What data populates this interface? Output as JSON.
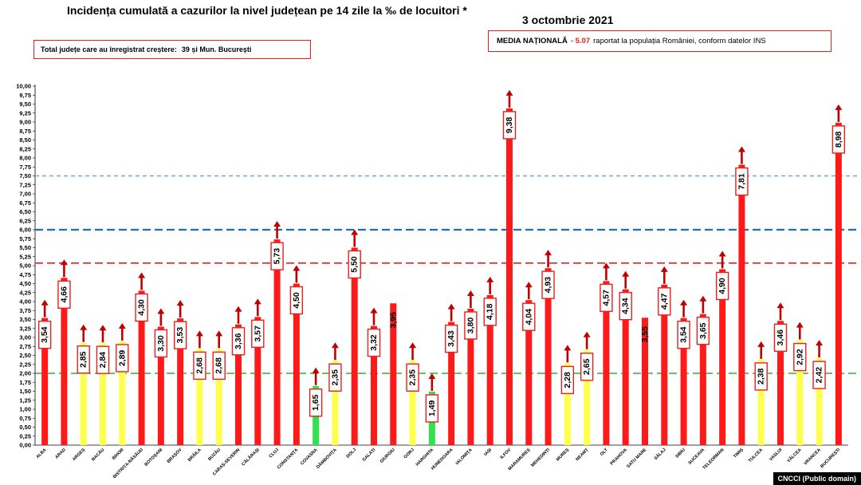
{
  "chart_data": {
    "type": "bar",
    "title": "Incidența cumulată a cazurilor la nivel județean pe 14 zile la ‰ de locuitori *",
    "date": "3 octombrie 2021",
    "ylim": [
      0,
      10
    ],
    "ytick_step": 0.25,
    "grid": false,
    "reference_lines": [
      {
        "value": 7.5,
        "color": "#6aa8d8",
        "style": "dashed"
      },
      {
        "value": 6.0,
        "color": "#1f6fb8",
        "style": "dashed"
      },
      {
        "value": 5.07,
        "color": "#e8201c",
        "style": "dashed"
      },
      {
        "value": 2.0,
        "color": "#2bb52b",
        "style": "dashed"
      }
    ],
    "categories": [
      "ALBA",
      "ARAD",
      "ARGEȘ",
      "BACĂU",
      "BIHOR",
      "BISTRIȚA-NĂSĂUD",
      "BOTOȘANI",
      "BRAȘOV",
      "BRĂILA",
      "BUZĂU",
      "CARAȘ-SEVERIN",
      "CĂLĂRAȘI",
      "CLUJ",
      "CONSTANȚA",
      "COVASNA",
      "DÂMBOVIȚA",
      "DOLJ",
      "GALAȚI",
      "GIURGIU",
      "GORJ",
      "HARGHITA",
      "HUNEDOARA",
      "IALOMIȚA",
      "IAȘI",
      "ILFOV",
      "MARAMUREȘ",
      "MEHEDINȚI",
      "MUREȘ",
      "NEAMȚ",
      "OLT",
      "PRAHOVA",
      "SATU MARE",
      "SĂLAJ",
      "SIBIU",
      "SUCEAVA",
      "TELEORMAN",
      "TIMIȘ",
      "TULCEA",
      "VASLUI",
      "VÂLCEA",
      "VRANCEA",
      "BUCUREȘTI"
    ],
    "values": [
      3.54,
      4.66,
      2.85,
      2.84,
      2.89,
      4.3,
      3.3,
      3.53,
      2.68,
      2.68,
      3.36,
      3.57,
      5.73,
      4.5,
      1.65,
      2.35,
      5.5,
      3.32,
      3.95,
      2.35,
      1.49,
      3.43,
      3.8,
      4.18,
      9.38,
      4.04,
      4.93,
      2.28,
      2.65,
      4.57,
      4.34,
      3.55,
      4.47,
      3.54,
      3.65,
      4.9,
      7.81,
      2.38,
      3.46,
      2.92,
      2.42,
      8.98
    ],
    "labels": [
      "3,54",
      "4,66",
      "2,85",
      "2,84",
      "2,89",
      "4,30",
      "3,30",
      "3,53",
      "2,68",
      "2,68",
      "3,36",
      "3,57",
      "5,73",
      "4,50",
      "1,65",
      "2,35",
      "5,50",
      "3,32",
      "3,95",
      "2,35",
      "1,49",
      "3,43",
      "3,80",
      "4,18",
      "9,38",
      "4,04",
      "4,93",
      "2,28",
      "2,65",
      "4,57",
      "4,34",
      "3,55",
      "4,47",
      "3,54",
      "3,65",
      "4,90",
      "7,81",
      "2,38",
      "3,46",
      "2,92",
      "2,42",
      "8,98"
    ],
    "colors": [
      "red",
      "red",
      "yellow",
      "yellow",
      "yellow",
      "red",
      "red",
      "red",
      "yellow",
      "yellow",
      "red",
      "red",
      "red",
      "red",
      "green",
      "yellow",
      "red",
      "red",
      "red",
      "yellow",
      "green",
      "red",
      "red",
      "red",
      "red",
      "red",
      "red",
      "yellow",
      "yellow",
      "red",
      "red",
      "red",
      "red",
      "red",
      "red",
      "red",
      "red",
      "yellow",
      "red",
      "yellow",
      "yellow",
      "red"
    ],
    "increase_arrow": [
      true,
      true,
      true,
      true,
      true,
      true,
      true,
      true,
      true,
      true,
      true,
      true,
      true,
      true,
      true,
      true,
      true,
      true,
      false,
      true,
      true,
      true,
      true,
      true,
      true,
      true,
      true,
      true,
      true,
      true,
      true,
      false,
      true,
      true,
      true,
      true,
      true,
      true,
      true,
      true,
      true,
      true
    ],
    "label_boxed": [
      true,
      true,
      true,
      true,
      true,
      true,
      true,
      true,
      true,
      true,
      true,
      true,
      true,
      true,
      true,
      true,
      true,
      true,
      false,
      true,
      true,
      true,
      true,
      true,
      true,
      true,
      true,
      true,
      true,
      true,
      true,
      false,
      true,
      true,
      true,
      true,
      true,
      true,
      true,
      true,
      true,
      true
    ],
    "palette": {
      "red": "#ff1a1a",
      "yellow": "#ffff4d",
      "green": "#33e04d",
      "arrow": "#c00000",
      "box": "#e8201c"
    }
  },
  "header": {
    "total_label": "Total județe care au înregistrat creștere:",
    "total_value": "39 și Mun. București",
    "media_label": "MEDIA NAȚIONALĂ",
    "media_value": "- 5.07",
    "media_note": "raportat la populația României, conform datelor INS"
  },
  "credit": "CNCCI (Public domain)"
}
